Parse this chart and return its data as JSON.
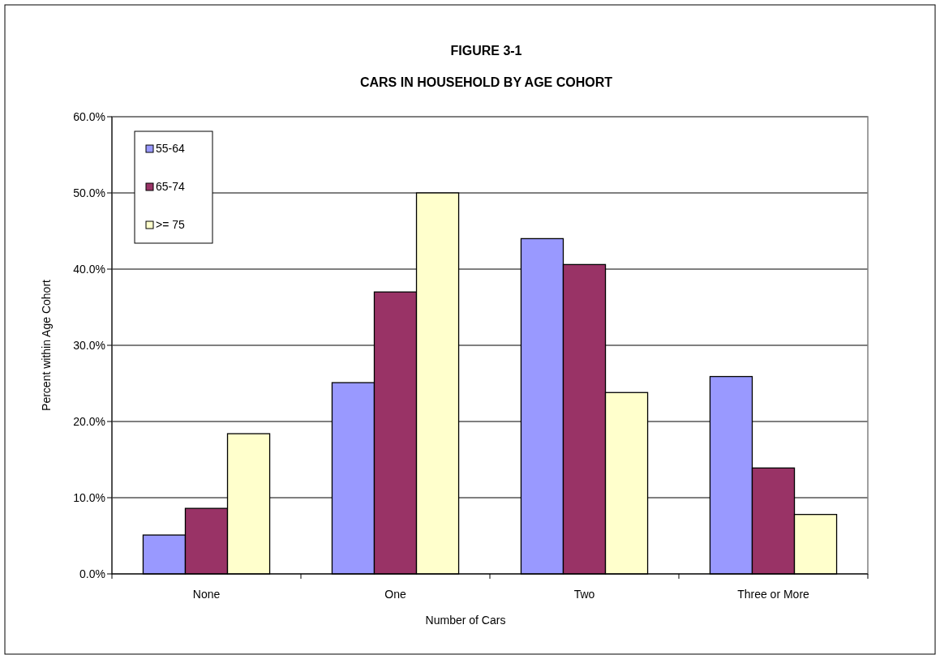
{
  "chart_data": {
    "type": "bar",
    "title": "FIGURE 3-1",
    "subtitle": "CARS IN HOUSEHOLD BY AGE COHORT",
    "xlabel": "Number of Cars",
    "ylabel": "Percent within Age Cohort",
    "categories": [
      "None",
      "One",
      "Two",
      "Three or More"
    ],
    "series": [
      {
        "name": "55-64",
        "color": "#9999ff",
        "values": [
          5.1,
          25.1,
          44.0,
          25.9
        ]
      },
      {
        "name": "65-74",
        "color": "#993366",
        "values": [
          8.6,
          37.0,
          40.6,
          13.9
        ]
      },
      {
        "name": ">= 75",
        "color": "#ffffcc",
        "values": [
          18.4,
          50.0,
          23.8,
          7.8
        ]
      }
    ],
    "ylim": [
      0,
      60
    ],
    "yticks": [
      {
        "value": 0,
        "label": "0.0%"
      },
      {
        "value": 10,
        "label": "10.0%"
      },
      {
        "value": 20,
        "label": "20.0%"
      },
      {
        "value": 30,
        "label": "30.0%"
      },
      {
        "value": 40,
        "label": "40.0%"
      },
      {
        "value": 50,
        "label": "50.0%"
      },
      {
        "value": 60,
        "label": "60.0%"
      }
    ],
    "grid": "y",
    "legend": "top left"
  }
}
